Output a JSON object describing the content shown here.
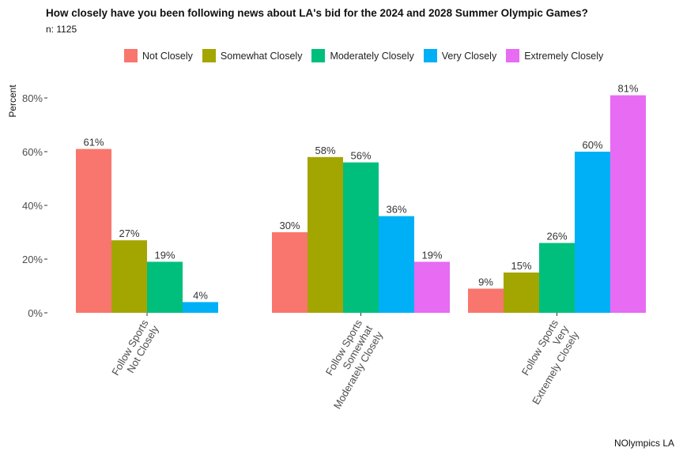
{
  "chart_title": "How closely have you been following news about LA's bid for the 2024 and 2028 Summer Olympic Games?",
  "chart_subtitle": "n: 1125",
  "caption": "NOlympics LA",
  "chart_data": {
    "type": "bar",
    "title": "How closely have you been following news about LA's bid for the 2024 and 2028 Summer Olympic Games?",
    "subtitle": "n: 1125",
    "xlabel": "",
    "ylabel": "Percent",
    "ylim": [
      0,
      85
    ],
    "y_ticks": [
      0,
      20,
      40,
      60,
      80
    ],
    "y_tick_labels": [
      "0%",
      "20%",
      "40%",
      "60%",
      "80%"
    ],
    "grid": false,
    "legend_position": "top",
    "categories": [
      [
        "Follow Sports",
        "Not Closely"
      ],
      [
        "Follow Sports",
        "Somewhat",
        "Moderately Closely"
      ],
      [
        "Follow Sports",
        "Very",
        "Extremely Closely"
      ]
    ],
    "series": [
      {
        "name": "Not Closely",
        "color": "#F8766D",
        "values": [
          61,
          30,
          9
        ]
      },
      {
        "name": "Somewhat Closely",
        "color": "#A3A500",
        "values": [
          27,
          58,
          15
        ]
      },
      {
        "name": "Moderately Closely",
        "color": "#00BF7D",
        "values": [
          19,
          56,
          26
        ]
      },
      {
        "name": "Very Closely",
        "color": "#00B0F6",
        "values": [
          4,
          36,
          60
        ]
      },
      {
        "name": "Extremely Closely",
        "color": "#E76BF3",
        "values": [
          null,
          19,
          81
        ]
      }
    ],
    "data_labels": [
      [
        "61%",
        "27%",
        "19%",
        "4%",
        null
      ],
      [
        "30%",
        "58%",
        "56%",
        "36%",
        "19%"
      ],
      [
        "9%",
        "15%",
        "26%",
        "60%",
        "81%"
      ]
    ]
  }
}
